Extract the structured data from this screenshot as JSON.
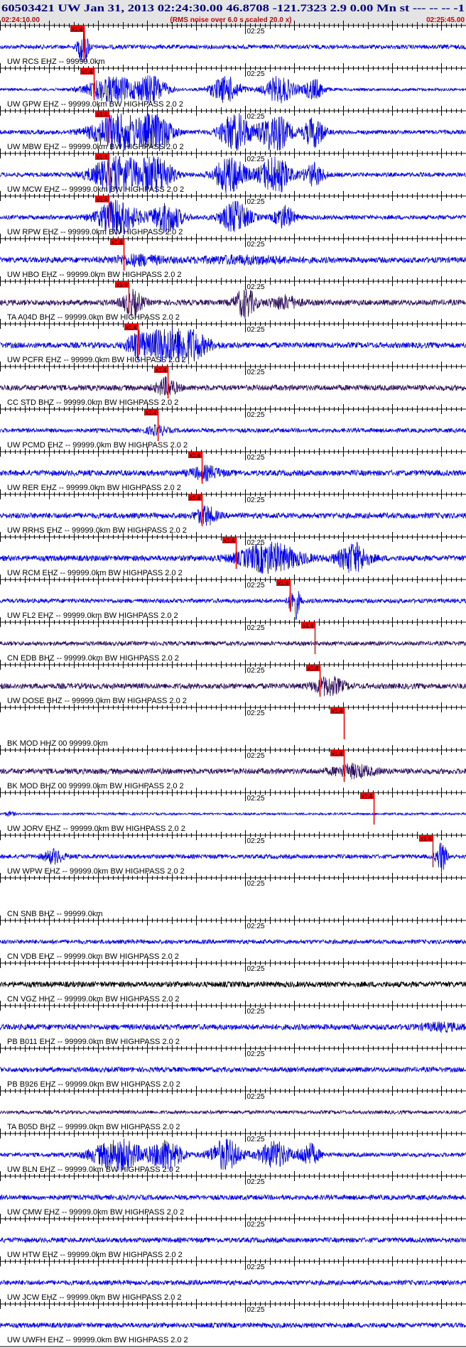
{
  "header": {
    "title": "60503421 UW Jan 31, 2013 02:24:30.00   46.8708 -121.7323  2.9 0.00 Mn st --- -- --  -1",
    "start_time": "02:24:10.00",
    "note": "(RMS noise over 6.0 s scaled 20.0 x)",
    "end_time": "02:25:45.00"
  },
  "colors": {
    "title": "#000080",
    "header_red": "#d00000",
    "header_bg": "#e4e4e4",
    "pick_box": "#ee0000",
    "pick_line": "#ff0000",
    "grid": "#000000"
  },
  "axis": {
    "minute_label": "02:25",
    "start_seconds": 10,
    "end_seconds": 105,
    "minute_seconds": 60
  },
  "pick_label": "x1.4",
  "traces": [
    {
      "label": "UW RCS EHZ -- 99999.0km",
      "color": "#0000ff",
      "amp": 3,
      "pick": 27,
      "bursts": [
        [
          27,
          1,
          10
        ]
      ]
    },
    {
      "label": "UW GPW EHZ -- 99999.0km BW  HIGHPASS  2.0  2",
      "color": "#0000ff",
      "amp": 2,
      "pick": 29,
      "bursts": [
        [
          33,
          5,
          10
        ],
        [
          41,
          3,
          10
        ],
        [
          56,
          3,
          10
        ],
        [
          67,
          3,
          10
        ],
        [
          74,
          2,
          8
        ]
      ]
    },
    {
      "label": "UW MBW EHZ -- 99999.0km BW  HIGHPASS  2.0  2",
      "color": "#0000ff",
      "amp": 3,
      "pick": 32,
      "bursts": [
        [
          34,
          5,
          10
        ],
        [
          42,
          3,
          10
        ],
        [
          58,
          3,
          10
        ],
        [
          66,
          3,
          10
        ],
        [
          74,
          2,
          8
        ]
      ]
    },
    {
      "label": "UW MCW EHZ -- 99999.0km BW  HIGHPASS  2.0  2",
      "color": "#0000ff",
      "amp": 3,
      "pick": 32,
      "bursts": [
        [
          34,
          5,
          10
        ],
        [
          42,
          3,
          10
        ],
        [
          57,
          3,
          10
        ],
        [
          66,
          3,
          10
        ],
        [
          74,
          2,
          6
        ]
      ]
    },
    {
      "label": "UW RPW EHZ -- 99999.0km BW  HIGHPASS  2.0  2",
      "color": "#0000ff",
      "amp": 3,
      "pick": 32,
      "bursts": [
        [
          34,
          4,
          9
        ],
        [
          44,
          3,
          8
        ],
        [
          58,
          3,
          8
        ],
        [
          68,
          2,
          6
        ]
      ]
    },
    {
      "label": "UW HBO EHZ -- 99999.0km BW  HIGHPASS  2.0  2",
      "color": "#0000ff",
      "amp": 4,
      "pick": 35,
      "bursts": [
        [
          38,
          5,
          2.5
        ],
        [
          60,
          10,
          2
        ]
      ]
    },
    {
      "label": "TA A04D BHZ -- 99999.0km BW  HIGHPASS  2.0  2",
      "color": "#301060",
      "amp": 4,
      "pick": 36,
      "bursts": [
        [
          37,
          2,
          5
        ],
        [
          60,
          2,
          6
        ],
        [
          68,
          3,
          3
        ]
      ]
    },
    {
      "label": "UW PCFR EHZ -- 99999.0km BW  HIGHPASS  2.0  2",
      "color": "#0000ff",
      "amp": 4,
      "pick": 38,
      "bursts": [
        [
          46,
          5,
          10
        ],
        [
          38,
          2,
          5
        ]
      ]
    },
    {
      "label": "CC STD BHZ -- 99999.0km BW  HIGHPASS  2.0  2",
      "color": "#301060",
      "amp": 4,
      "pick": 44,
      "bursts": [
        [
          44,
          2,
          4
        ]
      ]
    },
    {
      "label": "UW PCMD EHZ -- 99999.0km BW  HIGHPASS  2.0  2",
      "color": "#0000ff",
      "amp": 3,
      "pick": 42,
      "bursts": [
        [
          42,
          2,
          3
        ]
      ]
    },
    {
      "label": "UW RER EHZ -- 99999.0km BW  HIGHPASS  2.0  2",
      "color": "#0000ff",
      "amp": 4,
      "pick": 51,
      "bursts": [
        [
          52,
          3,
          3
        ]
      ]
    },
    {
      "label": "UW RRHS EHZ -- 99999.0km BW  HIGHPASS  2.0  2",
      "color": "#0000ff",
      "amp": 4,
      "pick": 51,
      "bursts": [
        [
          52,
          2,
          4
        ]
      ]
    },
    {
      "label": "UW RCM EHZ -- 99999.0km BW  HIGHPASS  2.0  2",
      "color": "#0000ff",
      "amp": 4,
      "pick": 58,
      "bursts": [
        [
          65,
          6,
          6
        ],
        [
          82,
          3,
          6
        ]
      ]
    },
    {
      "label": "UW FL2 EHZ -- 99999.0km BW  HIGHPASS  2.0  2",
      "color": "#0000ff",
      "amp": 3,
      "pick": 69,
      "bursts": [
        [
          70,
          1,
          10
        ]
      ]
    },
    {
      "label": "CN EDB BHZ -- 99999.0km BW  HIGHPASS  2.0  2",
      "color": "#301060",
      "amp": 3,
      "pick": 74,
      "bursts": []
    },
    {
      "label": "UW DOSE BHZ -- 99999.0km BW  HIGHPASS  2.0  2",
      "color": "#301060",
      "amp": 4,
      "pick": 75,
      "bursts": [
        [
          77,
          3,
          4
        ]
      ]
    },
    {
      "label": "BK MOD HHZ 00 99999.0km",
      "color": "#ffffff",
      "amp": 0,
      "pick": 80,
      "bursts": []
    },
    {
      "label": "BK MOD BHZ 00 99999.0km BW  HIGHPASS  2.0  2",
      "color": "#301060",
      "amp": 4,
      "pick": 80,
      "bursts": [
        [
          82,
          4,
          3
        ]
      ]
    },
    {
      "label": "UW JORV EHZ -- 99999.0km BW  HIGHPASS  2.0  2",
      "color": "#0000ff",
      "amp": 1.5,
      "pick": 86,
      "bursts": [
        [
          12,
          1,
          3
        ]
      ]
    },
    {
      "label": "UW WPW EHZ -- 99999.0km BW  HIGHPASS  2.0  2",
      "color": "#0000ff",
      "amp": 3,
      "pick": 98,
      "bursts": [
        [
          100,
          1,
          8
        ],
        [
          21,
          2,
          4
        ]
      ]
    },
    {
      "label": "CN SNB BHZ -- 99999.0km",
      "color": "#ffffff",
      "amp": 0,
      "pick": null,
      "bursts": []
    },
    {
      "label": "CN VDB EHZ -- 99999.0km BW  HIGHPASS  2.0  2",
      "color": "#0000ff",
      "amp": 3,
      "pick": null,
      "bursts": []
    },
    {
      "label": "CN VGZ HHZ -- 99999.0km BW  HIGHPASS  2.0  2",
      "color": "#000000",
      "amp": 4,
      "pick": null,
      "bursts": []
    },
    {
      "label": "PB B011 EHZ -- 99999.0km BW  HIGHPASS  2.0  2",
      "color": "#0000ff",
      "amp": 4,
      "pick": null,
      "bursts": [
        [
          100,
          4,
          2
        ]
      ]
    },
    {
      "label": "PB B926 EHZ -- 99999.0km BW  HIGHPASS  2.0  2",
      "color": "#0000ff",
      "amp": 3.5,
      "pick": null,
      "bursts": []
    },
    {
      "label": "TA B05D BHZ -- 99999.0km BW  HIGHPASS  2.0  2",
      "color": "#301060",
      "amp": 2.5,
      "pick": null,
      "bursts": []
    },
    {
      "label": "UW BLN EHZ -- 99999.0km BW  HIGHPASS  2.0  2",
      "color": "#0000ff",
      "amp": 3,
      "pick": null,
      "bursts": [
        [
          34,
          5,
          8
        ],
        [
          44,
          3,
          8
        ],
        [
          56,
          3,
          8
        ],
        [
          66,
          3,
          7
        ],
        [
          73,
          2,
          6
        ]
      ]
    },
    {
      "label": "UW CMW EHZ -- 99999.0km BW  HIGHPASS  2.0  2",
      "color": "#0000ff",
      "amp": 3.5,
      "pick": null,
      "bursts": []
    },
    {
      "label": "UW HTW EHZ -- 99999.0km BW  HIGHPASS  2.0  2",
      "color": "#0000ff",
      "amp": 3.5,
      "pick": null,
      "bursts": []
    },
    {
      "label": "UW JCW EHZ -- 99999.0km BW  HIGHPASS  2.0  2",
      "color": "#0000ff",
      "amp": 3.5,
      "pick": null,
      "bursts": []
    },
    {
      "label": "UW UWFH EHZ -- 99999.0km BW  HIGHPASS  2.0  2",
      "color": "#0000ff",
      "amp": 3.5,
      "pick": null,
      "bursts": []
    }
  ]
}
